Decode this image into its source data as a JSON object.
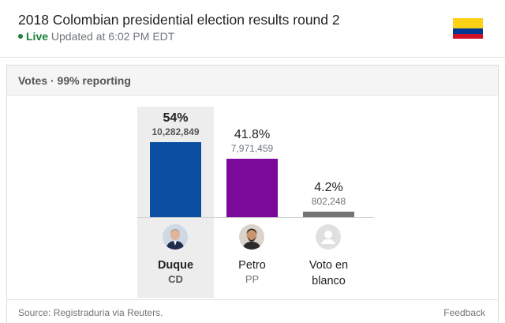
{
  "header": {
    "title": "2018 Colombian presidential election results round 2",
    "live_label": "Live",
    "updated": "Updated at 6:02 PM EDT",
    "flag_colors": [
      "#fcd116",
      "#003893",
      "#ce1126"
    ]
  },
  "card": {
    "reporting": "Votes · 99% reporting"
  },
  "candidates": [
    {
      "name": "Duque",
      "party": "CD",
      "percent": "54%",
      "votes": "10,282,849",
      "share": 54.0,
      "color": "#0b4ea2",
      "winner": true,
      "icon": "candidate-photo"
    },
    {
      "name": "Petro",
      "party": "PP",
      "percent": "41.8%",
      "votes": "7,971,459",
      "share": 41.8,
      "color": "#7b0a9b",
      "winner": false,
      "icon": "candidate-photo"
    },
    {
      "name": "Voto en blanco",
      "party": "",
      "percent": "4.2%",
      "votes": "802,248",
      "share": 4.2,
      "color": "#757575",
      "winner": false,
      "icon": "person-placeholder-icon"
    }
  ],
  "footer": {
    "source": "Source: Registraduria via Reuters.",
    "feedback": "Feedback"
  }
}
